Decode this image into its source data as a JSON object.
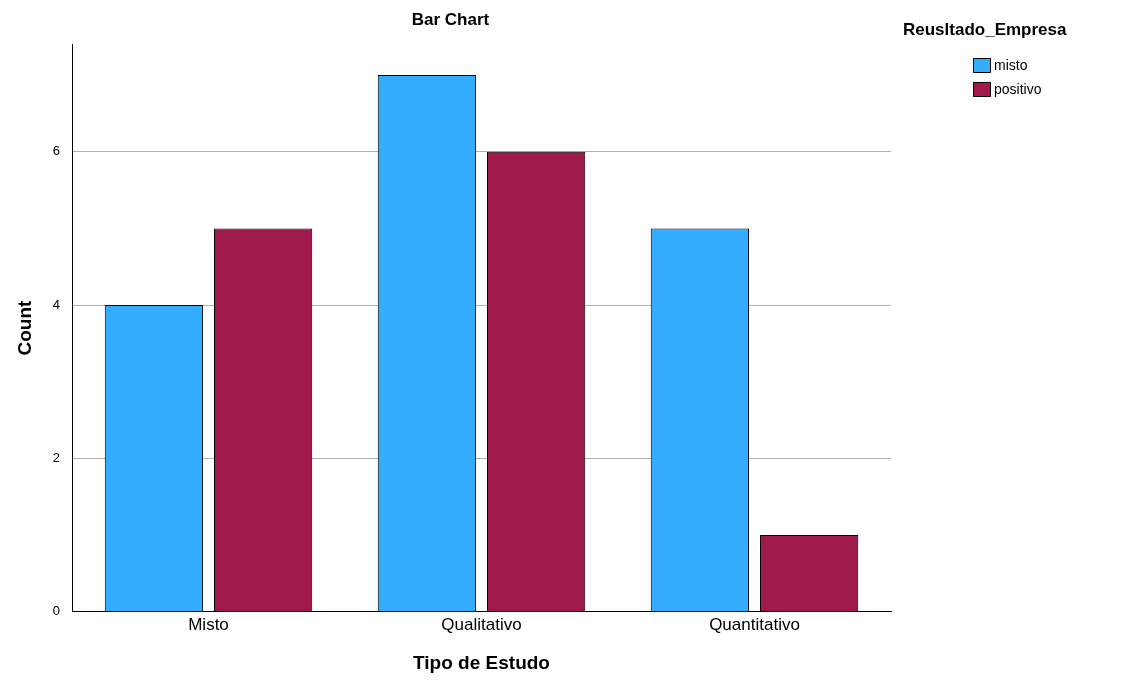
{
  "chart_data": {
    "type": "bar",
    "title": "Bar Chart",
    "xlabel": "Tipo de Estudo",
    "ylabel": "Count",
    "legend_title": "Reusltado_Empresa",
    "categories": [
      "Misto",
      "Qualitativo",
      "Quantitativo"
    ],
    "series": [
      {
        "name": "misto",
        "color": "#33adff",
        "values": [
          4,
          7,
          5
        ]
      },
      {
        "name": "positivo",
        "color": "#a0194d",
        "values": [
          5,
          6,
          1
        ]
      }
    ],
    "ylim": [
      0,
      7.4
    ],
    "yticks": [
      0,
      2,
      4,
      6
    ],
    "grid": "y",
    "legend": "top right"
  }
}
